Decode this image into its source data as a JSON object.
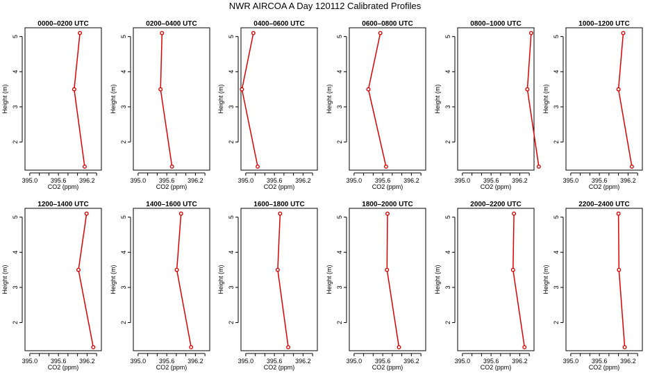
{
  "title": "NWR AIRCOA A  Day 120112  Calibrated Profiles",
  "colors": {
    "series": "#dd0000",
    "axis": "#000000",
    "background": "#ffffff"
  },
  "chart_data": [
    {
      "type": "line",
      "title": "0000–0200 UTC",
      "xlabel": "CO2 (ppm)",
      "ylabel": "Height (m)",
      "xlim": [
        394.9,
        396.5
      ],
      "ylim": [
        1.2,
        5.25
      ],
      "xticks": [
        "395.0",
        "395.6",
        "396.2"
      ],
      "yticks": [
        "2",
        "3",
        "4",
        "5"
      ],
      "x": [
        396.05,
        395.93,
        396.15
      ],
      "y": [
        5.1,
        3.5,
        1.3
      ]
    },
    {
      "type": "line",
      "title": "0200–0400 UTC",
      "xlabel": "CO2 (ppm)",
      "ylabel": "Height (m)",
      "xlim": [
        394.9,
        396.5
      ],
      "ylim": [
        1.2,
        5.25
      ],
      "xticks": [
        "395.0",
        "395.6",
        "396.2"
      ],
      "yticks": [
        "2",
        "3",
        "4",
        "5"
      ],
      "x": [
        395.5,
        395.47,
        395.71
      ],
      "y": [
        5.1,
        3.5,
        1.3
      ]
    },
    {
      "type": "line",
      "title": "0400–0600 UTC",
      "xlabel": "CO2 (ppm)",
      "ylabel": "Height (m)",
      "xlim": [
        394.9,
        396.5
      ],
      "ylim": [
        1.2,
        5.25
      ],
      "xticks": [
        "395.0",
        "395.6",
        "396.2"
      ],
      "yticks": [
        "2",
        "3",
        "4",
        "5"
      ],
      "x": [
        395.16,
        394.92,
        395.25
      ],
      "y": [
        5.1,
        3.5,
        1.3
      ]
    },
    {
      "type": "line",
      "title": "0600–0800 UTC",
      "xlabel": "CO2 (ppm)",
      "ylabel": "Height (m)",
      "xlim": [
        394.9,
        396.5
      ],
      "ylim": [
        1.2,
        5.25
      ],
      "xticks": [
        "395.0",
        "395.6",
        "396.2"
      ],
      "yticks": [
        "2",
        "3",
        "4",
        "5"
      ],
      "x": [
        395.55,
        395.3,
        395.67
      ],
      "y": [
        5.1,
        3.5,
        1.3
      ]
    },
    {
      "type": "line",
      "title": "0800–1000 UTC",
      "xlabel": "CO2 (ppm)",
      "ylabel": "Height (m)",
      "xlim": [
        394.9,
        396.5
      ],
      "ylim": [
        1.2,
        5.25
      ],
      "xticks": [
        "395.0",
        "395.6",
        "396.2"
      ],
      "yticks": [
        "2",
        "3",
        "4",
        "5"
      ],
      "x": [
        396.44,
        396.36,
        396.6
      ],
      "y": [
        5.1,
        3.5,
        1.3
      ]
    },
    {
      "type": "line",
      "title": "1000–1200 UTC",
      "xlabel": "CO2 (ppm)",
      "ylabel": "Height (m)",
      "xlim": [
        394.9,
        396.5
      ],
      "ylim": [
        1.2,
        5.25
      ],
      "xticks": [
        "395.0",
        "395.6",
        "396.2"
      ],
      "yticks": [
        "2",
        "3",
        "4",
        "5"
      ],
      "x": [
        396.1,
        396.0,
        396.28
      ],
      "y": [
        5.1,
        3.5,
        1.3
      ]
    },
    {
      "type": "line",
      "title": "1200–1400 UTC",
      "xlabel": "CO2 (ppm)",
      "ylabel": "Height (m)",
      "xlim": [
        394.9,
        396.5
      ],
      "ylim": [
        1.2,
        5.25
      ],
      "xticks": [
        "395.0",
        "395.6",
        "396.2"
      ],
      "yticks": [
        "2",
        "3",
        "4",
        "5"
      ],
      "x": [
        396.19,
        396.02,
        396.33
      ],
      "y": [
        5.1,
        3.5,
        1.3
      ]
    },
    {
      "type": "line",
      "title": "1400–1600 UTC",
      "xlabel": "CO2 (ppm)",
      "ylabel": "Height (m)",
      "xlim": [
        394.9,
        396.5
      ],
      "ylim": [
        1.2,
        5.25
      ],
      "xticks": [
        "395.0",
        "395.6",
        "396.2"
      ],
      "yticks": [
        "2",
        "3",
        "4",
        "5"
      ],
      "x": [
        395.9,
        395.81,
        396.11
      ],
      "y": [
        5.1,
        3.5,
        1.3
      ]
    },
    {
      "type": "line",
      "title": "1600–1800 UTC",
      "xlabel": "CO2 (ppm)",
      "ylabel": "Height (m)",
      "xlim": [
        394.9,
        396.5
      ],
      "ylim": [
        1.2,
        5.25
      ],
      "xticks": [
        "395.0",
        "395.6",
        "396.2"
      ],
      "yticks": [
        "2",
        "3",
        "4",
        "5"
      ],
      "x": [
        395.72,
        395.67,
        395.89
      ],
      "y": [
        5.1,
        3.5,
        1.3
      ]
    },
    {
      "type": "line",
      "title": "1800–2000 UTC",
      "xlabel": "CO2 (ppm)",
      "ylabel": "Height (m)",
      "xlim": [
        394.9,
        396.5
      ],
      "ylim": [
        1.2,
        5.25
      ],
      "xticks": [
        "395.0",
        "395.6",
        "396.2"
      ],
      "yticks": [
        "2",
        "3",
        "4",
        "5"
      ],
      "x": [
        395.7,
        395.69,
        395.94
      ],
      "y": [
        5.1,
        3.5,
        1.3
      ]
    },
    {
      "type": "line",
      "title": "2000–2200 UTC",
      "xlabel": "CO2 (ppm)",
      "ylabel": "Height (m)",
      "xlim": [
        394.9,
        396.5
      ],
      "ylim": [
        1.2,
        5.25
      ],
      "xticks": [
        "395.0",
        "395.6",
        "396.2"
      ],
      "yticks": [
        "2",
        "3",
        "4",
        "5"
      ],
      "x": [
        396.08,
        396.06,
        396.3
      ],
      "y": [
        5.1,
        3.5,
        1.3
      ]
    },
    {
      "type": "line",
      "title": "2200–2400 UTC",
      "xlabel": "CO2 (ppm)",
      "ylabel": "Height (m)",
      "xlim": [
        394.9,
        396.5
      ],
      "ylim": [
        1.2,
        5.25
      ],
      "xticks": [
        "395.0",
        "395.6",
        "396.2"
      ],
      "yticks": [
        "2",
        "3",
        "4",
        "5"
      ],
      "x": [
        396.0,
        396.01,
        396.13
      ],
      "y": [
        5.1,
        3.5,
        1.3
      ]
    }
  ]
}
